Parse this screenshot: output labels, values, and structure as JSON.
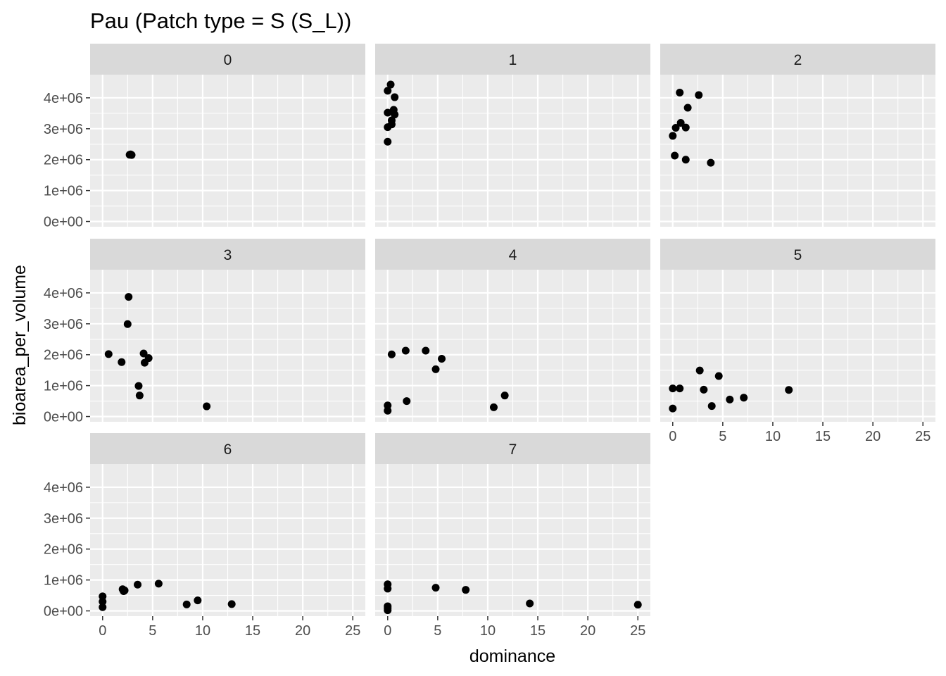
{
  "chart_data": {
    "type": "scatter",
    "title": "Pau (Patch type = S (S_L))",
    "xlabel": "dominance",
    "ylabel": "bioarea_per_volume",
    "xlim": [
      -1.25,
      26.25
    ],
    "ylim": [
      -170000,
      4750000
    ],
    "x_ticks": [
      0,
      5,
      10,
      15,
      20,
      25
    ],
    "x_tick_labels": [
      "0",
      "5",
      "10",
      "15",
      "20",
      "25"
    ],
    "y_ticks": [
      0,
      1000000,
      2000000,
      3000000,
      4000000
    ],
    "y_tick_labels": [
      "0e+00",
      "1e+06",
      "2e+06",
      "3e+06",
      "4e+06"
    ],
    "grid": true,
    "legend": "none",
    "colors": {
      "panel_bg": "#ebebeb",
      "strip_bg": "#d9d9d9",
      "grid": "#ffffff",
      "point": "#000000"
    },
    "facets": [
      {
        "label": "0",
        "points": [
          [
            2.7,
            2160000
          ],
          [
            2.8,
            2170000
          ],
          [
            2.9,
            2150000
          ]
        ]
      },
      {
        "label": "1",
        "points": [
          [
            0.3,
            4430000
          ],
          [
            0.0,
            4230000
          ],
          [
            0.7,
            4020000
          ],
          [
            0.0,
            3520000
          ],
          [
            0.6,
            3610000
          ],
          [
            0.7,
            3460000
          ],
          [
            0.4,
            3270000
          ],
          [
            0.4,
            3140000
          ],
          [
            0.0,
            3050000
          ],
          [
            0.0,
            2580000
          ]
        ]
      },
      {
        "label": "2",
        "points": [
          [
            0.7,
            4170000
          ],
          [
            2.6,
            4090000
          ],
          [
            1.5,
            3680000
          ],
          [
            0.8,
            3190000
          ],
          [
            0.3,
            3030000
          ],
          [
            1.3,
            3040000
          ],
          [
            0.0,
            2770000
          ],
          [
            0.2,
            2130000
          ],
          [
            1.3,
            2000000
          ],
          [
            3.8,
            1900000
          ]
        ]
      },
      {
        "label": "3",
        "points": [
          [
            2.6,
            3870000
          ],
          [
            2.5,
            2990000
          ],
          [
            0.6,
            2020000
          ],
          [
            4.1,
            2040000
          ],
          [
            4.6,
            1890000
          ],
          [
            1.9,
            1760000
          ],
          [
            4.2,
            1740000
          ],
          [
            3.6,
            990000
          ],
          [
            3.7,
            680000
          ],
          [
            10.4,
            330000
          ]
        ]
      },
      {
        "label": "4",
        "points": [
          [
            0.4,
            2010000
          ],
          [
            1.8,
            2130000
          ],
          [
            3.8,
            2130000
          ],
          [
            5.4,
            1870000
          ],
          [
            4.8,
            1530000
          ],
          [
            11.7,
            680000
          ],
          [
            1.9,
            500000
          ],
          [
            10.6,
            300000
          ],
          [
            0.0,
            360000
          ],
          [
            0.0,
            190000
          ]
        ]
      },
      {
        "label": "5",
        "points": [
          [
            2.7,
            1490000
          ],
          [
            4.6,
            1310000
          ],
          [
            0.0,
            910000
          ],
          [
            0.7,
            910000
          ],
          [
            3.1,
            870000
          ],
          [
            11.6,
            860000
          ],
          [
            7.1,
            610000
          ],
          [
            5.7,
            550000
          ],
          [
            3.9,
            340000
          ],
          [
            0.0,
            260000
          ]
        ]
      },
      {
        "label": "6",
        "points": [
          [
            5.6,
            880000
          ],
          [
            3.5,
            850000
          ],
          [
            2.0,
            700000
          ],
          [
            2.2,
            660000
          ],
          [
            2.1,
            640000
          ],
          [
            0.0,
            470000
          ],
          [
            0.0,
            300000
          ],
          [
            9.5,
            340000
          ],
          [
            12.9,
            220000
          ],
          [
            8.4,
            210000
          ],
          [
            0.0,
            120000
          ]
        ]
      },
      {
        "label": "7",
        "points": [
          [
            0.0,
            860000
          ],
          [
            0.0,
            720000
          ],
          [
            4.8,
            750000
          ],
          [
            7.8,
            680000
          ],
          [
            14.2,
            240000
          ],
          [
            25.0,
            200000
          ],
          [
            0.0,
            150000
          ],
          [
            0.0,
            90000
          ],
          [
            0.0,
            20000
          ]
        ]
      }
    ]
  }
}
